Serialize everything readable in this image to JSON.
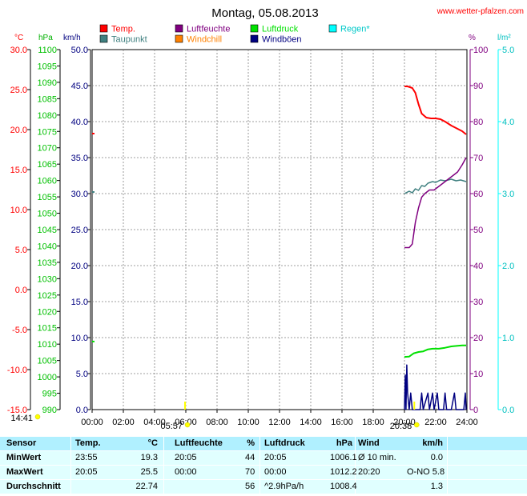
{
  "header": {
    "title": "Montag, 05.08.2013",
    "site": "www.wetter-pfalzen.com"
  },
  "legend": [
    {
      "label": "Temp.",
      "color": "#ff0000"
    },
    {
      "label": "Luftfeuchte",
      "color": "#800080"
    },
    {
      "label": "Luftdruck",
      "color": "#00e000"
    },
    {
      "label": "Regen*",
      "color": "#00ffff"
    },
    {
      "label": "Taupunkt",
      "color": "#408080"
    },
    {
      "label": "Windchill",
      "color": "#ff8000"
    },
    {
      "label": "Windböen",
      "color": "#000080"
    }
  ],
  "units": {
    "temp": "°C",
    "pressure": "hPa",
    "wind": "km/h",
    "humidity": "%",
    "rain": "l/m²"
  },
  "axes": {
    "temp_ticks": [
      "30.0",
      "25.0",
      "20.0",
      "15.0",
      "10.0",
      "5.0",
      "0.0",
      "-5.0",
      "-10.0",
      "-15.0"
    ],
    "pressure_ticks": [
      "1100",
      "1095",
      "1090",
      "1085",
      "1080",
      "1075",
      "1070",
      "1065",
      "1060",
      "1055",
      "1050",
      "1045",
      "1040",
      "1035",
      "1030",
      "1025",
      "1020",
      "1015",
      "1010",
      "1005",
      "1000",
      "995",
      "990"
    ],
    "wind_ticks": [
      "50.0",
      "45.0",
      "40.0",
      "35.0",
      "30.0",
      "25.0",
      "20.0",
      "15.0",
      "10.0",
      "5.0",
      "0.0"
    ],
    "humidity_ticks": [
      "100",
      "90",
      "80",
      "70",
      "60",
      "50",
      "40",
      "30",
      "20",
      "10",
      "0"
    ],
    "rain_ticks": [
      "5.0",
      "4.0",
      "3.0",
      "2.0",
      "1.0",
      "0.0"
    ],
    "x_ticks": [
      "00:00",
      "02:00",
      "04:00",
      "06:00",
      "08:00",
      "10:00",
      "12:00",
      "14:00",
      "16:00",
      "18:00",
      "20:00",
      "22:00",
      "24:00"
    ],
    "sun_marks": [
      {
        "time": "14:41",
        "x_hour": 0,
        "dy": 12,
        "anchor": "end",
        "color": "#ffff00"
      },
      {
        "time": "05:57",
        "x_hour": 5.95,
        "dy": 22,
        "anchor": "end",
        "color": "#ffff00"
      },
      {
        "time": "20:38",
        "x_hour": 20.63,
        "dy": 22,
        "anchor": "end",
        "color": "#ffff00"
      }
    ]
  },
  "chart_data": {
    "type": "line",
    "x_unit": "hour",
    "xlim": [
      0,
      24
    ],
    "series": [
      {
        "name": "Temp.",
        "axis": "temp",
        "ylim": [
          -15,
          30
        ],
        "color": "#ff0000",
        "points": [
          [
            20.0,
            25.4
          ],
          [
            20.2,
            25.4
          ],
          [
            20.5,
            25.2
          ],
          [
            20.7,
            24.6
          ],
          [
            20.9,
            23.2
          ],
          [
            21.1,
            22.0
          ],
          [
            21.4,
            21.5
          ],
          [
            21.7,
            21.4
          ],
          [
            22.0,
            21.4
          ],
          [
            22.3,
            21.3
          ],
          [
            22.6,
            21.0
          ],
          [
            23.0,
            20.5
          ],
          [
            23.4,
            20.1
          ],
          [
            23.7,
            19.8
          ],
          [
            23.95,
            19.4
          ]
        ]
      },
      {
        "name": "Taupunkt",
        "axis": "temp",
        "ylim": [
          -15,
          30
        ],
        "color": "#408080",
        "points": [
          [
            20.0,
            12.0
          ],
          [
            20.3,
            12.3
          ],
          [
            20.5,
            12.1
          ],
          [
            20.7,
            12.6
          ],
          [
            20.9,
            12.4
          ],
          [
            21.1,
            13.0
          ],
          [
            21.3,
            12.9
          ],
          [
            21.5,
            13.3
          ],
          [
            21.8,
            13.5
          ],
          [
            22.0,
            13.4
          ],
          [
            22.3,
            13.7
          ],
          [
            22.6,
            13.6
          ],
          [
            23.0,
            13.8
          ],
          [
            23.3,
            13.6
          ],
          [
            23.6,
            13.7
          ],
          [
            23.95,
            13.5
          ]
        ]
      },
      {
        "name": "Luftfeuchte",
        "axis": "humidity",
        "ylim": [
          0,
          100
        ],
        "color": "#800080",
        "points": [
          [
            20.0,
            45
          ],
          [
            20.3,
            45
          ],
          [
            20.5,
            46
          ],
          [
            20.7,
            52
          ],
          [
            20.9,
            56
          ],
          [
            21.1,
            59
          ],
          [
            21.3,
            60
          ],
          [
            21.6,
            61
          ],
          [
            21.9,
            61
          ],
          [
            22.2,
            62
          ],
          [
            22.5,
            63
          ],
          [
            22.8,
            64
          ],
          [
            23.1,
            65
          ],
          [
            23.4,
            66
          ],
          [
            23.7,
            68
          ],
          [
            23.95,
            70
          ]
        ]
      },
      {
        "name": "Luftdruck",
        "axis": "pressure",
        "ylim": [
          990,
          1100
        ],
        "color": "#00e000",
        "points": [
          [
            20.0,
            1006.1
          ],
          [
            20.3,
            1006.2
          ],
          [
            20.6,
            1007.2
          ],
          [
            20.9,
            1007.6
          ],
          [
            21.2,
            1007.8
          ],
          [
            21.5,
            1008.4
          ],
          [
            21.8,
            1008.6
          ],
          [
            22.2,
            1008.6
          ],
          [
            22.6,
            1008.9
          ],
          [
            23.0,
            1009.3
          ],
          [
            23.4,
            1009.5
          ],
          [
            23.7,
            1009.6
          ],
          [
            23.95,
            1009.6
          ]
        ]
      },
      {
        "name": "Windböen",
        "axis": "wind",
        "ylim": [
          0,
          50
        ],
        "color": "#000080",
        "points": [
          [
            20.0,
            0
          ],
          [
            20.05,
            4.8
          ],
          [
            20.1,
            0
          ],
          [
            20.15,
            6.2
          ],
          [
            20.2,
            2.3
          ],
          [
            20.3,
            0
          ],
          [
            20.4,
            2.3
          ],
          [
            20.5,
            0
          ],
          [
            21.0,
            0
          ],
          [
            21.1,
            2.3
          ],
          [
            21.2,
            0
          ],
          [
            21.5,
            2.3
          ],
          [
            21.6,
            0
          ],
          [
            21.8,
            2.3
          ],
          [
            21.9,
            0
          ],
          [
            22.1,
            2.3
          ],
          [
            22.2,
            0
          ],
          [
            22.5,
            0
          ],
          [
            22.6,
            2.3
          ],
          [
            22.7,
            0
          ],
          [
            23.0,
            0
          ],
          [
            23.2,
            2.3
          ],
          [
            23.3,
            0
          ],
          [
            23.8,
            0
          ],
          [
            23.9,
            2.3
          ],
          [
            23.95,
            0
          ]
        ]
      }
    ]
  },
  "stats": {
    "header": [
      "Sensor",
      "Temp.",
      "°C",
      "Luftfeuchte",
      "%",
      "Luftdruck",
      "hPa",
      "Wind",
      "km/h"
    ],
    "rows": [
      [
        "MinWert",
        "23:55",
        "19.3",
        "20:05",
        "44",
        "20:05",
        "1006.1",
        "Ø 10 min.",
        "0.0"
      ],
      [
        "MaxWert",
        "20:05",
        "25.5",
        "00:00",
        "70",
        "00:00",
        "1012.2",
        "20:20",
        "O-NO 5.8"
      ],
      [
        "Durchschnitt",
        "",
        "22.74",
        "",
        "56",
        "^2.9hPa/h",
        "1008.4",
        "",
        "1.3"
      ]
    ]
  }
}
